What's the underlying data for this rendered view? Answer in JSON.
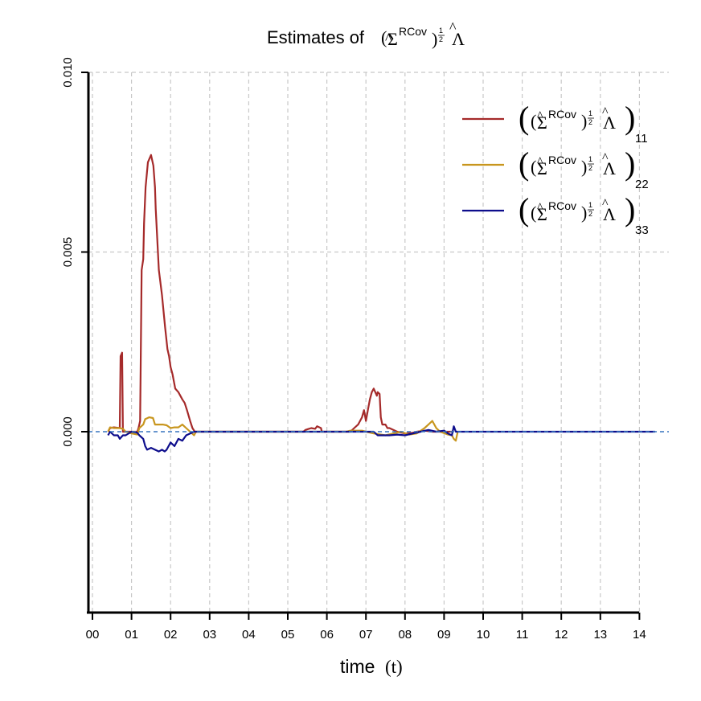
{
  "chart_data": {
    "type": "line",
    "title": {
      "prefix": "Estimates of ",
      "sigma": "Σ",
      "superscript": "RCov",
      "exponent_num": "1",
      "exponent_den": "2",
      "lambda": "Λ"
    },
    "xlabel": "time",
    "xlabel_unit": "(t)",
    "ylabel": "",
    "x_ticks": [
      "00",
      "01",
      "02",
      "03",
      "04",
      "05",
      "06",
      "07",
      "08",
      "09",
      "10",
      "11",
      "12",
      "13",
      "14"
    ],
    "y_ticks": [
      "0.000",
      "0.005",
      "0.010"
    ],
    "y_tick_values": [
      0.0,
      0.005,
      0.01
    ],
    "xlim": [
      0,
      14.4
    ],
    "ylim": [
      -0.0052,
      0.01
    ],
    "grid": true,
    "legend_position": "top-right",
    "reference_line": {
      "y": 0.0,
      "color": "#3a78c2"
    },
    "series": [
      {
        "name_subscript": "11",
        "color": "#a52a2a",
        "points": [
          [
            0.4,
            0.0
          ],
          [
            0.45,
            0.0001
          ],
          [
            0.55,
            0.00012
          ],
          [
            0.7,
            0.0001
          ],
          [
            0.72,
            0.0021
          ],
          [
            0.76,
            0.0022
          ],
          [
            0.78,
            0.0
          ],
          [
            0.85,
            0.0
          ],
          [
            1.0,
            0.0
          ],
          [
            1.15,
            0.0
          ],
          [
            1.18,
            0.0001
          ],
          [
            1.22,
            0.0003
          ],
          [
            1.26,
            0.0045
          ],
          [
            1.3,
            0.0048
          ],
          [
            1.32,
            0.0058
          ],
          [
            1.36,
            0.0068
          ],
          [
            1.42,
            0.0075
          ],
          [
            1.5,
            0.0077
          ],
          [
            1.56,
            0.0074
          ],
          [
            1.6,
            0.0068
          ],
          [
            1.62,
            0.0062
          ],
          [
            1.7,
            0.0045
          ],
          [
            1.78,
            0.0038
          ],
          [
            1.86,
            0.0029
          ],
          [
            1.92,
            0.0023
          ],
          [
            1.96,
            0.0021
          ],
          [
            2.0,
            0.0018
          ],
          [
            2.05,
            0.0016
          ],
          [
            2.12,
            0.0012
          ],
          [
            2.2,
            0.0011
          ],
          [
            2.3,
            0.0009
          ],
          [
            2.36,
            0.0008
          ],
          [
            2.42,
            0.0006
          ],
          [
            2.5,
            0.0003
          ],
          [
            2.56,
            0.0001
          ],
          [
            2.62,
            0.0
          ],
          [
            2.8,
            0.0
          ],
          [
            5.4,
            0.0
          ],
          [
            5.45,
            5e-05
          ],
          [
            5.6,
            0.0001
          ],
          [
            5.7,
            8e-05
          ],
          [
            5.75,
            0.00015
          ],
          [
            5.85,
            0.0001
          ],
          [
            5.87,
            0.0
          ],
          [
            6.6,
            0.0
          ],
          [
            6.7,
            0.0001
          ],
          [
            6.8,
            0.0002
          ],
          [
            6.9,
            0.0004
          ],
          [
            6.95,
            0.0006
          ],
          [
            7.0,
            0.0003
          ],
          [
            7.05,
            0.0006
          ],
          [
            7.1,
            0.0009
          ],
          [
            7.15,
            0.0011
          ],
          [
            7.2,
            0.0012
          ],
          [
            7.28,
            0.001
          ],
          [
            7.3,
            0.0011
          ],
          [
            7.35,
            0.00105
          ],
          [
            7.38,
            0.0004
          ],
          [
            7.42,
            0.0002
          ],
          [
            7.5,
            0.0002
          ],
          [
            7.55,
            0.0001
          ],
          [
            7.6,
            0.0001
          ],
          [
            7.8,
            0.0
          ],
          [
            8.0,
            -5e-05
          ],
          [
            8.2,
            -3e-05
          ],
          [
            8.3,
            0.0
          ],
          [
            8.5,
            3e-05
          ],
          [
            8.7,
            0.0
          ],
          [
            8.9,
            0.0
          ],
          [
            9.2,
            0.0
          ]
        ]
      },
      {
        "name_subscript": "22",
        "color": "#c8961e",
        "points": [
          [
            0.4,
            0.0
          ],
          [
            0.45,
            0.00012
          ],
          [
            0.55,
            0.0001
          ],
          [
            0.7,
            0.0001
          ],
          [
            0.78,
            8e-05
          ],
          [
            0.85,
            0.0
          ],
          [
            1.0,
            -5e-05
          ],
          [
            1.15,
            -8e-05
          ],
          [
            1.2,
            0.0001
          ],
          [
            1.3,
            0.0002
          ],
          [
            1.35,
            0.00035
          ],
          [
            1.45,
            0.0004
          ],
          [
            1.55,
            0.00038
          ],
          [
            1.6,
            0.0002
          ],
          [
            1.7,
            0.0002
          ],
          [
            1.8,
            0.0002
          ],
          [
            1.9,
            0.00018
          ],
          [
            2.0,
            0.0001
          ],
          [
            2.1,
            0.00012
          ],
          [
            2.2,
            0.00012
          ],
          [
            2.3,
            0.0002
          ],
          [
            2.35,
            0.00015
          ],
          [
            2.4,
            0.0001
          ],
          [
            2.5,
            0.0
          ],
          [
            2.6,
            -0.0001
          ],
          [
            2.65,
            0.0
          ],
          [
            2.8,
            0.0
          ],
          [
            5.5,
            0.0
          ],
          [
            6.0,
            0.0
          ],
          [
            6.5,
            0.0
          ],
          [
            6.6,
            3e-05
          ],
          [
            6.9,
            3e-05
          ],
          [
            7.0,
            0.0
          ],
          [
            7.2,
            -5e-05
          ],
          [
            7.5,
            -0.0001
          ],
          [
            7.7,
            -5e-05
          ],
          [
            7.9,
            0.0
          ],
          [
            8.1,
            -8e-05
          ],
          [
            8.3,
            -5e-05
          ],
          [
            8.5,
            0.0001
          ],
          [
            8.6,
            0.0002
          ],
          [
            8.7,
            0.0003
          ],
          [
            8.8,
            0.0001
          ],
          [
            8.9,
            0.0
          ],
          [
            9.1,
            -8e-05
          ],
          [
            9.2,
            -0.0001
          ],
          [
            9.25,
            -0.0002
          ],
          [
            9.3,
            -0.00025
          ],
          [
            9.35,
            0.0
          ]
        ]
      },
      {
        "name_subscript": "33",
        "color": "#0d0d8c",
        "points": [
          [
            0.4,
            -0.0001
          ],
          [
            0.45,
            0.0
          ],
          [
            0.55,
            -0.0001
          ],
          [
            0.65,
            -0.0001
          ],
          [
            0.7,
            -0.0002
          ],
          [
            0.78,
            -0.0001
          ],
          [
            0.85,
            -0.0001
          ],
          [
            1.0,
            0.0
          ],
          [
            1.15,
            -3e-05
          ],
          [
            1.2,
            -0.0001
          ],
          [
            1.3,
            -0.0002
          ],
          [
            1.35,
            -0.0004
          ],
          [
            1.4,
            -0.0005
          ],
          [
            1.5,
            -0.00045
          ],
          [
            1.6,
            -0.0005
          ],
          [
            1.7,
            -0.00055
          ],
          [
            1.78,
            -0.0005
          ],
          [
            1.85,
            -0.00055
          ],
          [
            1.9,
            -0.0005
          ],
          [
            2.0,
            -0.0003
          ],
          [
            2.1,
            -0.0004
          ],
          [
            2.2,
            -0.0002
          ],
          [
            2.3,
            -0.00025
          ],
          [
            2.4,
            -0.0001
          ],
          [
            2.5,
            -5e-05
          ],
          [
            2.6,
            0.0
          ],
          [
            2.8,
            0.0
          ],
          [
            5.5,
            0.0
          ],
          [
            6.0,
            0.0
          ],
          [
            6.5,
            0.0
          ],
          [
            7.0,
            0.0
          ],
          [
            7.2,
            0.0
          ],
          [
            7.3,
            -0.0001
          ],
          [
            7.6,
            -0.0001
          ],
          [
            7.8,
            -8e-05
          ],
          [
            8.0,
            -0.0001
          ],
          [
            8.2,
            -5e-05
          ],
          [
            8.4,
            0.0
          ],
          [
            8.6,
            5e-05
          ],
          [
            8.8,
            0.0
          ],
          [
            9.0,
            3e-05
          ],
          [
            9.1,
            -5e-05
          ],
          [
            9.2,
            -0.0001
          ],
          [
            9.25,
            0.00015
          ],
          [
            9.3,
            0.0
          ],
          [
            14.4,
            0.0
          ]
        ]
      }
    ]
  }
}
